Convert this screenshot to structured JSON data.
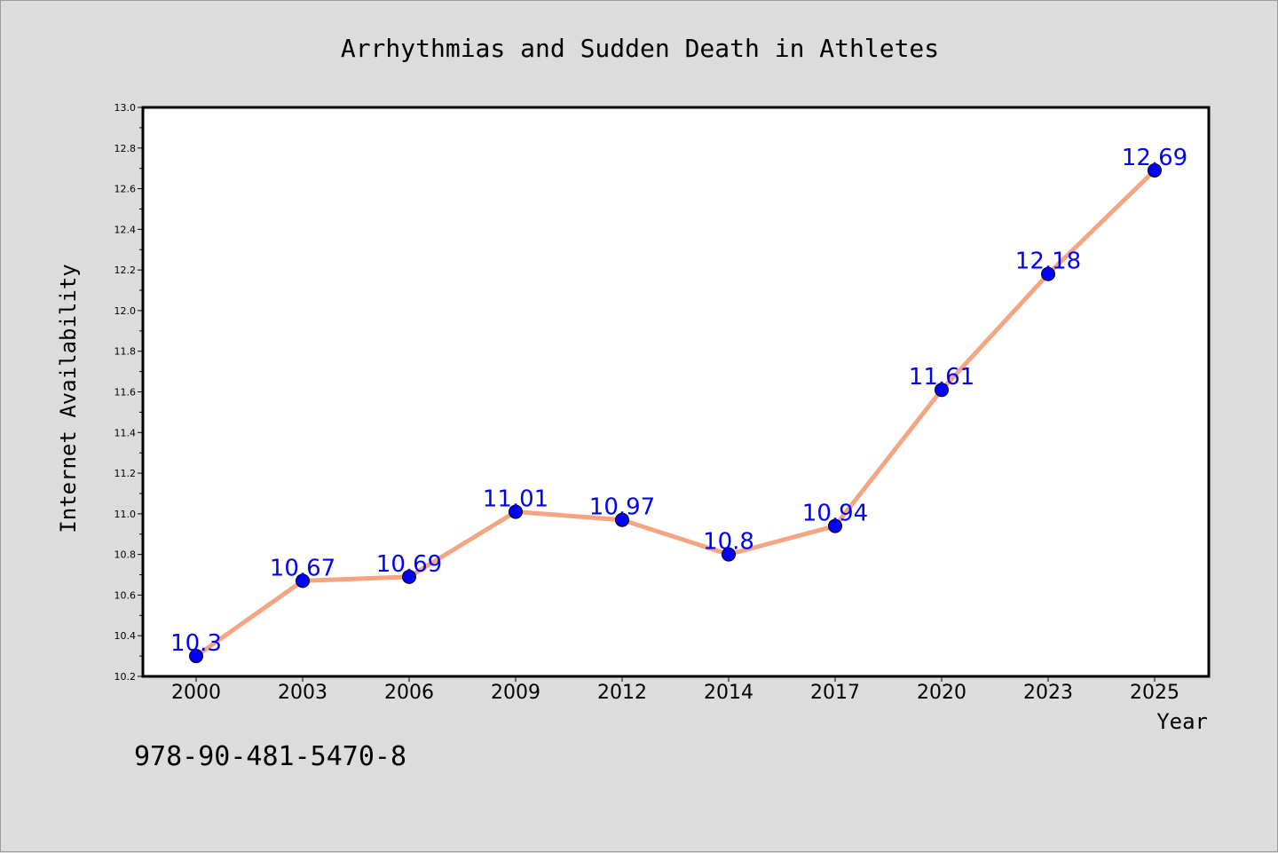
{
  "chart_data": {
    "type": "line",
    "title": "Arrhythmias and Sudden Death in Athletes",
    "xlabel": "Year",
    "ylabel": "Internet Availability",
    "categories": [
      "2000",
      "2003",
      "2006",
      "2009",
      "2012",
      "2014",
      "2017",
      "2020",
      "2023",
      "2025"
    ],
    "series": [
      {
        "values": [
          10.3,
          10.67,
          10.69,
          11.01,
          10.97,
          10.8,
          10.94,
          11.61,
          12.18,
          12.69
        ]
      }
    ],
    "data_labels": [
      "10.3",
      "10.67",
      "10.69",
      "11.01",
      "10.97",
      "10.8",
      "10.94",
      "11.61",
      "12.18",
      "12.69"
    ],
    "ylim": [
      10.2,
      13.0
    ],
    "yticks": [
      "10.2",
      "10.4",
      "10.6",
      "10.8",
      "11.0",
      "11.2",
      "11.4",
      "11.6",
      "11.8",
      "12.0",
      "12.2",
      "12.4",
      "12.6",
      "12.8",
      "13.0"
    ],
    "grid": false,
    "legend": "none",
    "colors": {
      "line": "#f4a582",
      "marker": "#0000ff",
      "label": "#0000ff",
      "background": "#dcdcdc",
      "plot_bg": "#ffffff"
    }
  },
  "footer": {
    "isbn": "978-90-481-5470-8"
  }
}
